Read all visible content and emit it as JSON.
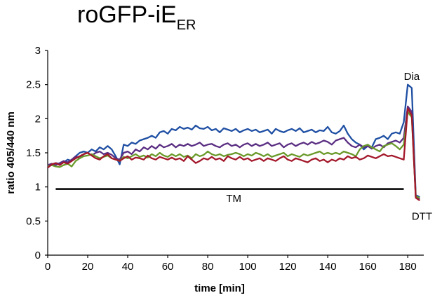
{
  "chart_data": {
    "type": "line",
    "title_main": "roGFP-iE",
    "title_sub": "ER",
    "xlabel": "time [min]",
    "ylabel": "ratio 405/440 nm",
    "xlim": [
      0,
      188
    ],
    "ylim": [
      0,
      3
    ],
    "xticks": [
      0,
      20,
      40,
      60,
      80,
      100,
      120,
      140,
      160,
      180
    ],
    "yticks": [
      "0",
      "0.5",
      "1",
      "1.5",
      "2",
      "2.5",
      "3"
    ],
    "yticks_values": [
      0,
      0.5,
      1,
      1.5,
      2,
      2.5,
      3
    ],
    "grid": false,
    "annotations": {
      "dia": "Dia",
      "tm": "TM",
      "dtt": "DTT"
    },
    "tm_bar": {
      "x_start": 4,
      "x_end": 178,
      "y": 0.97
    },
    "series": [
      {
        "color": "#1f4fa3",
        "x": [
          0,
          2,
          4,
          6,
          8,
          10,
          12,
          14,
          16,
          18,
          20,
          22,
          24,
          26,
          28,
          30,
          32,
          34,
          36,
          38,
          40,
          42,
          44,
          46,
          48,
          50,
          52,
          54,
          56,
          58,
          60,
          62,
          64,
          66,
          68,
          70,
          72,
          74,
          76,
          78,
          80,
          82,
          84,
          86,
          88,
          90,
          92,
          94,
          96,
          98,
          100,
          102,
          104,
          106,
          108,
          110,
          112,
          114,
          116,
          118,
          120,
          122,
          124,
          126,
          128,
          130,
          132,
          134,
          136,
          138,
          140,
          142,
          144,
          146,
          148,
          150,
          152,
          154,
          156,
          158,
          160,
          162,
          164,
          166,
          168,
          170,
          172,
          174,
          176,
          178,
          180,
          182,
          184,
          186
        ],
        "y": [
          1.3,
          1.32,
          1.35,
          1.34,
          1.36,
          1.4,
          1.38,
          1.45,
          1.5,
          1.52,
          1.5,
          1.55,
          1.52,
          1.58,
          1.55,
          1.6,
          1.55,
          1.45,
          1.33,
          1.62,
          1.6,
          1.65,
          1.63,
          1.68,
          1.7,
          1.72,
          1.75,
          1.72,
          1.8,
          1.82,
          1.78,
          1.85,
          1.83,
          1.88,
          1.85,
          1.87,
          1.84,
          1.9,
          1.86,
          1.85,
          1.88,
          1.83,
          1.85,
          1.8,
          1.86,
          1.84,
          1.82,
          1.85,
          1.8,
          1.83,
          1.85,
          1.82,
          1.84,
          1.8,
          1.82,
          1.84,
          1.78,
          1.85,
          1.82,
          1.8,
          1.83,
          1.85,
          1.82,
          1.86,
          1.8,
          1.82,
          1.84,
          1.8,
          1.83,
          1.82,
          1.88,
          1.8,
          1.78,
          1.82,
          1.9,
          1.78,
          1.7,
          1.65,
          1.62,
          1.55,
          1.6,
          1.58,
          1.7,
          1.72,
          1.75,
          1.7,
          1.78,
          1.8,
          1.78,
          1.95,
          2.5,
          2.45,
          0.88,
          0.85
        ]
      },
      {
        "color": "#5a2e82",
        "x": [
          0,
          2,
          4,
          6,
          8,
          10,
          12,
          14,
          16,
          18,
          20,
          22,
          24,
          26,
          28,
          30,
          32,
          34,
          36,
          38,
          40,
          42,
          44,
          46,
          48,
          50,
          52,
          54,
          56,
          58,
          60,
          62,
          64,
          66,
          68,
          70,
          72,
          74,
          76,
          78,
          80,
          82,
          84,
          86,
          88,
          90,
          92,
          94,
          96,
          98,
          100,
          102,
          104,
          106,
          108,
          110,
          112,
          114,
          116,
          118,
          120,
          122,
          124,
          126,
          128,
          130,
          132,
          134,
          136,
          138,
          140,
          142,
          144,
          146,
          148,
          150,
          152,
          154,
          156,
          158,
          160,
          162,
          164,
          166,
          168,
          170,
          172,
          174,
          176,
          178,
          180,
          182,
          184,
          186
        ],
        "y": [
          1.32,
          1.34,
          1.32,
          1.35,
          1.38,
          1.36,
          1.4,
          1.45,
          1.42,
          1.48,
          1.5,
          1.46,
          1.5,
          1.52,
          1.48,
          1.5,
          1.47,
          1.42,
          1.4,
          1.5,
          1.52,
          1.48,
          1.55,
          1.52,
          1.58,
          1.55,
          1.6,
          1.56,
          1.62,
          1.58,
          1.6,
          1.63,
          1.58,
          1.62,
          1.6,
          1.63,
          1.6,
          1.62,
          1.65,
          1.6,
          1.62,
          1.63,
          1.6,
          1.58,
          1.62,
          1.64,
          1.6,
          1.62,
          1.58,
          1.62,
          1.64,
          1.6,
          1.63,
          1.6,
          1.62,
          1.65,
          1.6,
          1.62,
          1.64,
          1.58,
          1.62,
          1.64,
          1.6,
          1.63,
          1.65,
          1.62,
          1.66,
          1.63,
          1.65,
          1.68,
          1.66,
          1.62,
          1.68,
          1.7,
          1.72,
          1.65,
          1.6,
          1.58,
          1.62,
          1.58,
          1.6,
          1.56,
          1.6,
          1.62,
          1.58,
          1.64,
          1.66,
          1.68,
          1.65,
          1.72,
          2.18,
          2.1,
          0.85,
          0.82
        ]
      },
      {
        "color": "#6a9a2a",
        "x": [
          0,
          2,
          4,
          6,
          8,
          10,
          12,
          14,
          16,
          18,
          20,
          22,
          24,
          26,
          28,
          30,
          32,
          34,
          36,
          38,
          40,
          42,
          44,
          46,
          48,
          50,
          52,
          54,
          56,
          58,
          60,
          62,
          64,
          66,
          68,
          70,
          72,
          74,
          76,
          78,
          80,
          82,
          84,
          86,
          88,
          90,
          92,
          94,
          96,
          98,
          100,
          102,
          104,
          106,
          108,
          110,
          112,
          114,
          116,
          118,
          120,
          122,
          124,
          126,
          128,
          130,
          132,
          134,
          136,
          138,
          140,
          142,
          144,
          146,
          148,
          150,
          152,
          154,
          156,
          158,
          160,
          162,
          164,
          166,
          168,
          170,
          172,
          174,
          176,
          178,
          180,
          182,
          184,
          186
        ],
        "y": [
          1.3,
          1.32,
          1.3,
          1.29,
          1.32,
          1.34,
          1.3,
          1.38,
          1.42,
          1.45,
          1.46,
          1.48,
          1.45,
          1.42,
          1.44,
          1.46,
          1.42,
          1.4,
          1.38,
          1.44,
          1.42,
          1.45,
          1.48,
          1.44,
          1.46,
          1.43,
          1.48,
          1.45,
          1.5,
          1.46,
          1.44,
          1.48,
          1.45,
          1.48,
          1.44,
          1.46,
          1.42,
          1.48,
          1.45,
          1.47,
          1.52,
          1.48,
          1.46,
          1.48,
          1.45,
          1.47,
          1.48,
          1.5,
          1.48,
          1.45,
          1.48,
          1.46,
          1.5,
          1.48,
          1.45,
          1.48,
          1.44,
          1.46,
          1.48,
          1.5,
          1.45,
          1.48,
          1.46,
          1.44,
          1.48,
          1.46,
          1.48,
          1.5,
          1.52,
          1.48,
          1.5,
          1.48,
          1.5,
          1.48,
          1.52,
          1.5,
          1.48,
          1.45,
          1.55,
          1.6,
          1.62,
          1.58,
          1.55,
          1.52,
          1.6,
          1.62,
          1.64,
          1.6,
          1.55,
          1.62,
          2.1,
          2.02,
          0.86,
          0.84
        ]
      },
      {
        "color": "#a3182a",
        "x": [
          0,
          2,
          4,
          6,
          8,
          10,
          12,
          14,
          16,
          18,
          20,
          22,
          24,
          26,
          28,
          30,
          32,
          34,
          36,
          38,
          40,
          42,
          44,
          46,
          48,
          50,
          52,
          54,
          56,
          58,
          60,
          62,
          64,
          66,
          68,
          70,
          72,
          74,
          76,
          78,
          80,
          82,
          84,
          86,
          88,
          90,
          92,
          94,
          96,
          98,
          100,
          102,
          104,
          106,
          108,
          110,
          112,
          114,
          116,
          118,
          120,
          122,
          124,
          126,
          128,
          130,
          132,
          134,
          136,
          138,
          140,
          142,
          144,
          146,
          148,
          150,
          152,
          154,
          156,
          158,
          160,
          162,
          164,
          166,
          168,
          170,
          172,
          174,
          176,
          178,
          180,
          182,
          184,
          186
        ],
        "y": [
          1.28,
          1.33,
          1.35,
          1.32,
          1.36,
          1.34,
          1.38,
          1.42,
          1.45,
          1.48,
          1.5,
          1.46,
          1.42,
          1.4,
          1.45,
          1.48,
          1.42,
          1.4,
          1.38,
          1.42,
          1.45,
          1.4,
          1.43,
          1.42,
          1.4,
          1.46,
          1.42,
          1.4,
          1.44,
          1.42,
          1.4,
          1.43,
          1.4,
          1.42,
          1.38,
          1.45,
          1.4,
          1.35,
          1.38,
          1.42,
          1.4,
          1.44,
          1.4,
          1.42,
          1.38,
          1.45,
          1.42,
          1.4,
          1.44,
          1.4,
          1.42,
          1.38,
          1.4,
          1.42,
          1.38,
          1.42,
          1.4,
          1.38,
          1.42,
          1.45,
          1.4,
          1.38,
          1.42,
          1.4,
          1.38,
          1.36,
          1.4,
          1.42,
          1.38,
          1.4,
          1.36,
          1.4,
          1.38,
          1.42,
          1.4,
          1.45,
          1.42,
          1.44,
          1.4,
          1.42,
          1.46,
          1.44,
          1.42,
          1.45,
          1.48,
          1.45,
          1.46,
          1.44,
          1.42,
          1.4,
          2.15,
          2.05,
          0.84,
          0.8
        ]
      }
    ]
  }
}
